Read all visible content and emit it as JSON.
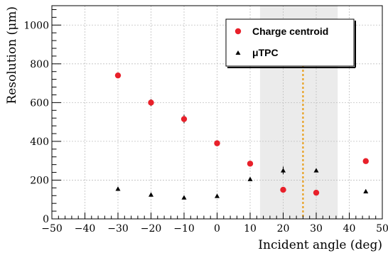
{
  "chart_data": {
    "type": "scatter",
    "xlabel": "Incident angle (deg)",
    "ylabel": "Resolution (μm)",
    "xlim": [
      -50,
      50
    ],
    "ylim": [
      0,
      1100
    ],
    "x_ticks": [
      -50,
      -40,
      -30,
      -20,
      -10,
      0,
      10,
      20,
      30,
      40,
      50
    ],
    "x_tick_labels": [
      "−50",
      "−40",
      "−30",
      "−20",
      "−10",
      "0",
      "10",
      "20",
      "30",
      "40",
      "50"
    ],
    "y_ticks": [
      0,
      200,
      400,
      600,
      800,
      1000
    ],
    "y_tick_labels": [
      "0",
      "200",
      "400",
      "600",
      "800",
      "1000"
    ],
    "grid": true,
    "legend_position": "top-right",
    "shaded_region": [
      13,
      36.5
    ],
    "vertical_line_x": 26,
    "series": [
      {
        "name": "Charge centroid",
        "marker": "circle",
        "color": "#e8202a",
        "x": [
          -30,
          -20,
          -10,
          0,
          10,
          20,
          30,
          45
        ],
        "y": [
          740,
          600,
          515,
          390,
          285,
          150,
          135,
          298
        ],
        "yerr": [
          8,
          18,
          22,
          8,
          8,
          8,
          8,
          8
        ]
      },
      {
        "name": "μTPC",
        "marker": "triangle",
        "color": "#000000",
        "x": [
          -30,
          -20,
          -10,
          0,
          10,
          20,
          30,
          45
        ],
        "y": [
          155,
          125,
          110,
          118,
          205,
          250,
          250,
          142
        ],
        "yerr": [
          5,
          5,
          5,
          5,
          5,
          20,
          8,
          5
        ]
      }
    ]
  },
  "colors": {
    "shaded_region": "#ebebeb",
    "vertical_line": "#e8a020",
    "grid": "#bfbfbf"
  }
}
